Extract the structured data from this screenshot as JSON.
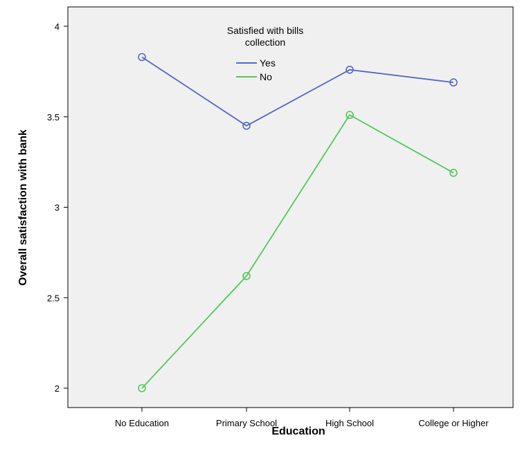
{
  "chart_data": {
    "type": "line",
    "categories": [
      "No Education",
      "Primary School",
      "High School",
      "College or Higher"
    ],
    "series": [
      {
        "name": "Yes",
        "color": "#5468c6",
        "values": [
          3.83,
          3.45,
          3.76,
          3.69
        ]
      },
      {
        "name": "No",
        "color": "#52c85a",
        "values": [
          2.0,
          2.62,
          3.51,
          3.19
        ]
      }
    ],
    "xlabel": "Education",
    "ylabel": "Overall satisfaction with bank",
    "ylim": [
      2,
      4
    ],
    "yticks": [
      "2",
      "2.5",
      "3",
      "3.5",
      "4"
    ],
    "legend": {
      "title_line1": "Satisfied with bills",
      "title_line2": "collection",
      "placement": "top-center"
    },
    "grid": false,
    "marker": "open-circle",
    "background": "#f0f0f0"
  }
}
